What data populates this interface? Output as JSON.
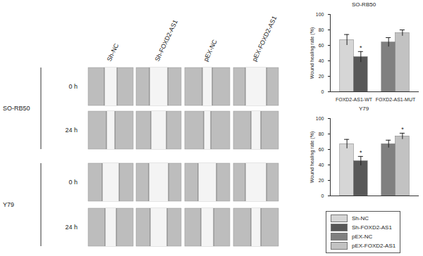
{
  "image_panel": {
    "columns": [
      "Sh-NC",
      "Sh-FOXD2-AS1",
      "pEX-NC",
      "pEX-FOXD2-AS1"
    ],
    "rows": [
      {
        "cell_line": "SO-RB50",
        "times": [
          "0 h",
          "24 h"
        ]
      },
      {
        "cell_line": "Y79",
        "times": [
          "0 h",
          "24 h"
        ]
      }
    ]
  },
  "chart_data": [
    {
      "type": "bar",
      "title": "SO-RB50",
      "y_label": "Wound healing rate (%)",
      "categories": [
        "FOXD2-AS1-WT",
        "FOXD2-AS1-MUT"
      ],
      "ylim": [
        0,
        100
      ],
      "yticks": [
        0,
        20,
        40,
        60,
        80,
        100
      ],
      "series": [
        {
          "name": "Sh-NC",
          "color": "#d6d6d6",
          "values": [
            67,
            null
          ],
          "errors": [
            7,
            null
          ],
          "significance": [
            null,
            null
          ]
        },
        {
          "name": "Sh-FOXD2-AS1",
          "color": "#585858",
          "values": [
            45,
            null
          ],
          "errors": [
            7,
            null
          ],
          "significance": [
            "*",
            null
          ]
        },
        {
          "name": "pEX-NC",
          "color": "#808080",
          "values": [
            null,
            64
          ],
          "errors": [
            null,
            6
          ],
          "significance": [
            null,
            null
          ]
        },
        {
          "name": "pEX-FOXD2-AS1",
          "color": "#c2c2c2",
          "values": [
            null,
            76
          ],
          "errors": [
            null,
            4
          ],
          "significance": [
            null,
            null
          ]
        }
      ]
    },
    {
      "type": "bar",
      "title": "Y79",
      "y_label": "Wound healing rate (%)",
      "categories": [
        null,
        null
      ],
      "ylim": [
        0,
        100
      ],
      "yticks": [
        0,
        20,
        40,
        60,
        80,
        100
      ],
      "legend": "bottom",
      "series": [
        {
          "name": "Sh-NC",
          "color": "#d6d6d6",
          "values": [
            67,
            null
          ],
          "errors": [
            6,
            null
          ],
          "significance": [
            null,
            null
          ]
        },
        {
          "name": "Sh-FOXD2-AS1",
          "color": "#585858",
          "values": [
            45,
            null
          ],
          "errors": [
            6,
            null
          ],
          "significance": [
            "*",
            null
          ]
        },
        {
          "name": "pEX-NC",
          "color": "#808080",
          "values": [
            null,
            67
          ],
          "errors": [
            null,
            5
          ],
          "significance": [
            null,
            null
          ]
        },
        {
          "name": "pEX-FOXD2-AS1",
          "color": "#c2c2c2",
          "values": [
            null,
            77
          ],
          "errors": [
            null,
            4
          ],
          "significance": [
            null,
            "*"
          ]
        }
      ]
    }
  ]
}
